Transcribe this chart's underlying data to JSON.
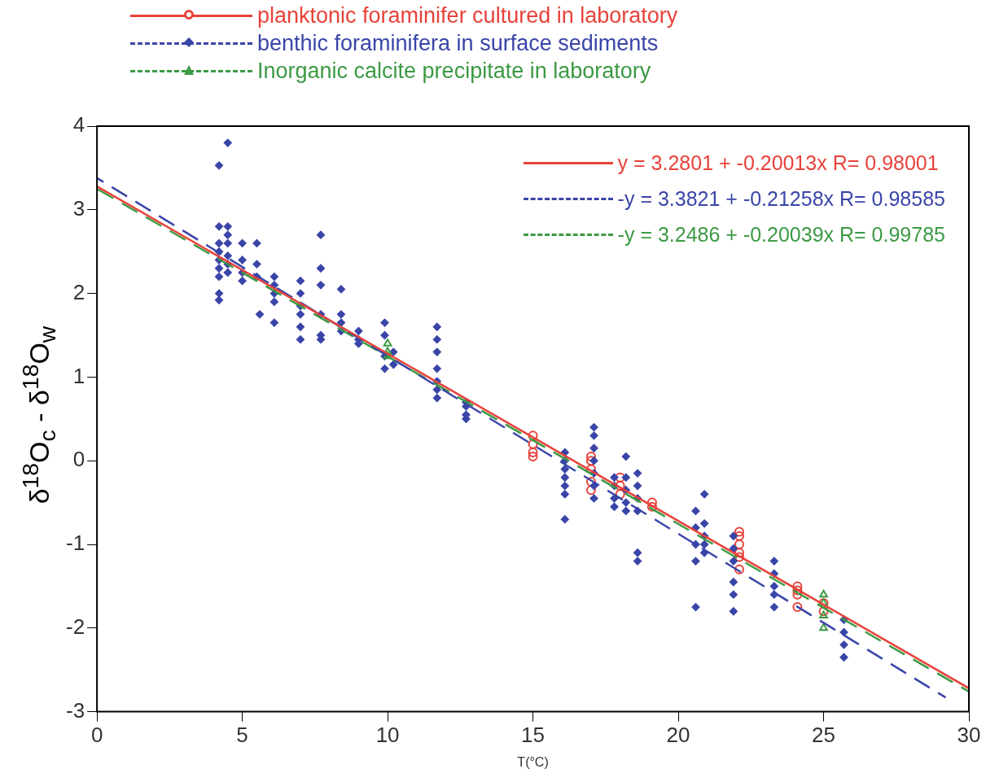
{
  "chart_data": {
    "type": "scatter",
    "xlabel": "T(°C)",
    "ylabel": "δ$^{18}$O$_{c}$ - δ$^{18}$O$_{w}$",
    "xlim": [
      0,
      30
    ],
    "xticks": [
      0,
      5,
      10,
      15,
      20,
      25,
      30
    ],
    "ylim": [
      -3,
      4
    ],
    "yticks": [
      -3,
      -2,
      -1,
      0,
      1,
      2,
      3,
      4
    ],
    "grid": false,
    "legend": "top right",
    "series": [
      {
        "name": "planktonic foraminifer cultured in laboratory",
        "type": "scatter",
        "color": "#e8423a",
        "marker": "circle",
        "line_style": "solid",
        "x": [
          15,
          15,
          15,
          15,
          17,
          17,
          17,
          17,
          17,
          18,
          18,
          18,
          19.1,
          19.1,
          22.1,
          22.1,
          22.1,
          22.1,
          22.1,
          22.1,
          24.1,
          24.1,
          24.1,
          24.1,
          25,
          25
        ],
        "values": [
          0.3,
          0.2,
          0.1,
          0.05,
          0.05,
          0,
          -0.1,
          -0.25,
          -0.35,
          -0.2,
          -0.3,
          -0.4,
          -0.5,
          -0.55,
          -0.85,
          -0.9,
          -1.0,
          -1.1,
          -1.15,
          -1.3,
          -1.5,
          -1.55,
          -1.6,
          -1.75,
          -1.7,
          -1.8
        ]
      },
      {
        "name": "benthic foraminifera in surface sediments",
        "type": "scatter",
        "color": "#3a45a8",
        "marker": "diamond",
        "line_style": "dashed",
        "x": [
          4.2,
          4.2,
          4.2,
          4.2,
          4.2,
          4.2,
          4.2,
          4.2,
          4.2,
          4.5,
          4.5,
          4.5,
          4.5,
          4.5,
          4.5,
          4.5,
          5,
          5,
          5,
          5,
          5.5,
          5.5,
          5.5,
          5.6,
          6.1,
          6.1,
          6.1,
          6.1,
          6.1,
          7,
          7,
          7,
          7,
          7,
          7,
          7.7,
          7.7,
          7.7,
          7.7,
          7.7,
          7.7,
          8.4,
          8.4,
          8.4,
          8.4,
          9,
          9,
          9,
          9.9,
          9.9,
          9.9,
          9.9,
          10.2,
          10.2,
          11.7,
          11.7,
          11.7,
          11.7,
          11.7,
          11.7,
          11.7,
          12.7,
          12.7,
          12.7,
          12.7,
          16.1,
          16.1,
          16.1,
          16.1,
          16.1,
          16.1,
          16.1,
          17.1,
          17.1,
          17.1,
          17.1,
          17.1,
          17.1,
          17.1,
          17.8,
          17.8,
          17.8,
          17.8,
          18.2,
          18.2,
          18.2,
          18.2,
          18.2,
          18.6,
          18.6,
          18.6,
          18.6,
          18.6,
          18.6,
          20.6,
          20.6,
          20.6,
          20.6,
          20.6,
          20.9,
          20.9,
          20.9,
          20.9,
          20.9,
          21.9,
          21.9,
          21.9,
          21.9,
          21.9,
          21.9,
          23.3,
          23.3,
          23.3,
          23.3,
          23.3,
          25.7,
          25.7,
          25.7,
          25.7
        ],
        "values": [
          3.53,
          2.8,
          2.6,
          2.5,
          2.4,
          2.3,
          2.2,
          2.0,
          1.92,
          3.8,
          2.8,
          2.7,
          2.6,
          2.45,
          2.35,
          2.25,
          2.6,
          2.4,
          2.25,
          2.15,
          2.6,
          2.35,
          2.2,
          1.75,
          2.2,
          2.1,
          2.0,
          1.9,
          1.65,
          2.15,
          2.0,
          1.85,
          1.75,
          1.6,
          1.45,
          2.7,
          2.3,
          2.1,
          1.75,
          1.5,
          1.45,
          2.05,
          1.75,
          1.65,
          1.55,
          1.55,
          1.45,
          1.4,
          1.65,
          1.5,
          1.25,
          1.1,
          1.3,
          1.15,
          1.6,
          1.45,
          1.3,
          1.1,
          0.95,
          0.85,
          0.75,
          0.7,
          0.65,
          0.55,
          0.5,
          0.1,
          0,
          -0.1,
          -0.2,
          -0.3,
          -0.4,
          -0.7,
          0.4,
          0.3,
          0.15,
          0,
          -0.15,
          -0.3,
          -0.45,
          -0.2,
          -0.3,
          -0.45,
          -0.55,
          0.05,
          -0.2,
          -0.35,
          -0.5,
          -0.6,
          -0.15,
          -0.3,
          -0.45,
          -0.6,
          -1.1,
          -1.2,
          -0.6,
          -0.8,
          -1.0,
          -1.2,
          -1.75,
          -0.4,
          -0.75,
          -0.9,
          -1.0,
          -1.1,
          -0.9,
          -1.05,
          -1.2,
          -1.45,
          -1.6,
          -1.8,
          -1.2,
          -1.35,
          -1.5,
          -1.6,
          -1.75,
          -1.9,
          -2.05,
          -2.2,
          -2.35
        ]
      },
      {
        "name": "Inorganic calcite precipitate in laboratory",
        "type": "scatter",
        "color": "#3c9a44",
        "marker": "triangle",
        "line_style": "dashed",
        "x": [
          10,
          10,
          10,
          25,
          25,
          25,
          25
        ],
        "values": [
          1.4,
          1.3,
          1.25,
          -1.6,
          -1.7,
          -1.85,
          -2.0
        ]
      },
      {
        "name": "y = 3.2801 + -0.20013x R= 0.98001",
        "type": "line",
        "color": "#e8423a",
        "line_style": "solid",
        "marker": "none",
        "x": [
          0,
          30
        ],
        "values": [
          3.28,
          -2.72
        ]
      },
      {
        "name": "-y = 3.3821 + -0.21258x R= 0.98585",
        "type": "line",
        "color": "#3a45a8",
        "line_style": "dashed",
        "marker": "none",
        "x": [
          0,
          29.2
        ],
        "values": [
          3.38,
          -2.83
        ]
      },
      {
        "name": "-y = 3.2486 + -0.20039x R= 0.99785",
        "type": "line",
        "color": "#3c9a44",
        "line_style": "dashed",
        "marker": "none",
        "x": [
          0,
          30
        ],
        "values": [
          3.25,
          -2.76
        ]
      }
    ]
  }
}
